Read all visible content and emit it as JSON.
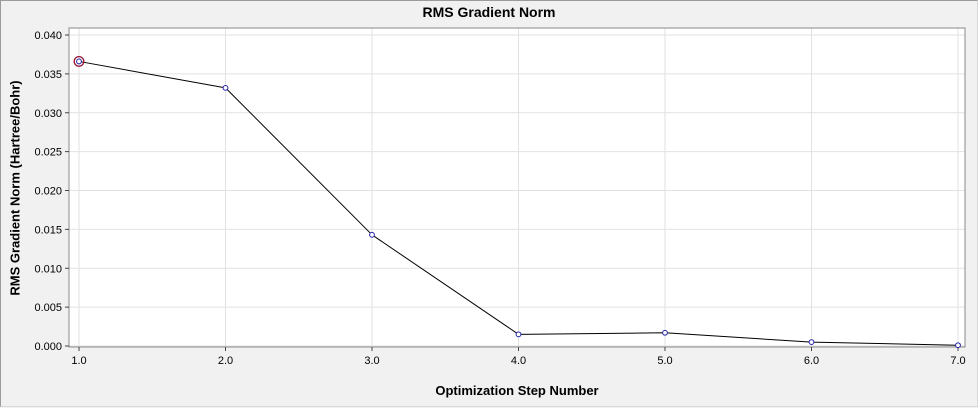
{
  "chart_data": {
    "type": "line",
    "title": "RMS Gradient Norm",
    "xlabel": "Optimization Step Number",
    "ylabel": "RMS Gradient Norm (Hartree/Bohr)",
    "x": [
      1,
      2,
      3,
      4,
      5,
      6,
      7
    ],
    "y": [
      0.0366,
      0.0332,
      0.0143,
      0.0015,
      0.0017,
      0.0005,
      0.0001
    ],
    "xlim": [
      1.0,
      7.0
    ],
    "ylim": [
      0.0,
      0.04
    ],
    "x_ticks": [
      "1.0",
      "2.0",
      "3.0",
      "4.0",
      "5.0",
      "6.0",
      "7.0"
    ],
    "y_ticks": [
      "0.000",
      "0.005",
      "0.010",
      "0.015",
      "0.020",
      "0.025",
      "0.030",
      "0.035",
      "0.040"
    ],
    "grid": true,
    "legend": "none",
    "colors": {
      "line": "#000000",
      "marker_stroke": "#2222aa",
      "marker_fill": "#ffffff",
      "highlight_ring": "#991133",
      "grid_line": "#e2e2e2",
      "frame": "#8a8a8a",
      "tick": "#444444",
      "plot_background": "#ffffff",
      "outer_background": "#f1f1f1"
    },
    "highlight_point_index": 0
  }
}
